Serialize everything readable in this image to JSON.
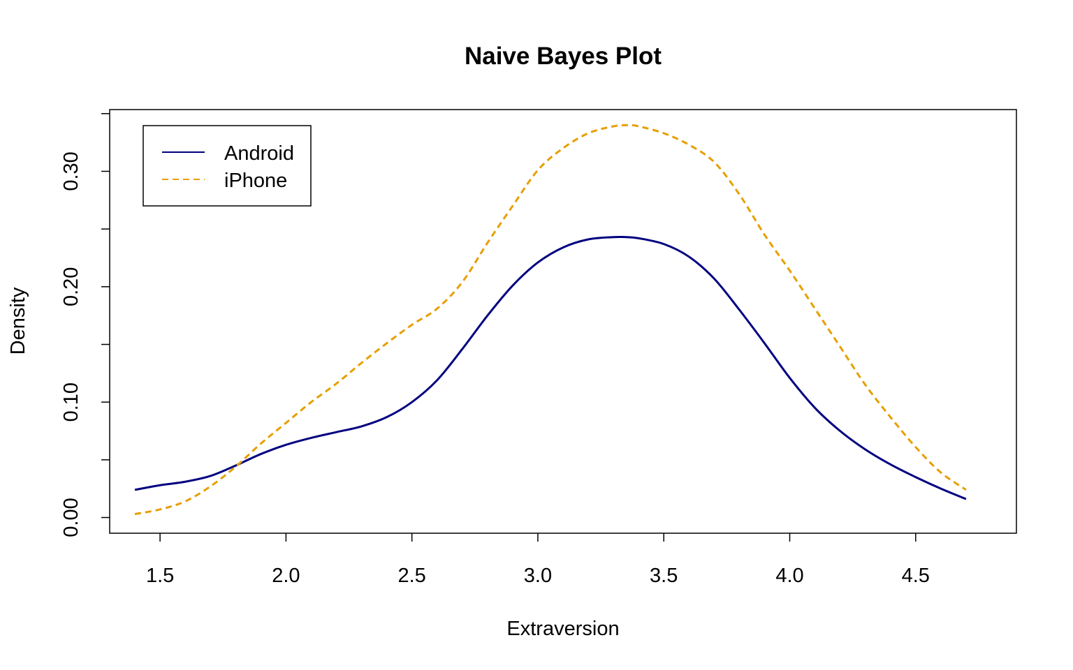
{
  "chart_data": {
    "type": "line",
    "title": "Naive Bayes Plot",
    "xlabel": "Extraversion",
    "ylabel": "Density",
    "xlim": [
      1.3,
      4.9
    ],
    "ylim": [
      -0.0136,
      0.3535
    ],
    "x_ticks": [
      1.5,
      2.0,
      2.5,
      3.0,
      3.5,
      4.0,
      4.5
    ],
    "x_tick_labels": [
      "1.5",
      "2.0",
      "2.5",
      "3.0",
      "3.5",
      "4.0",
      "4.5"
    ],
    "y_ticks": [
      0.0,
      0.05,
      0.1,
      0.15,
      0.2,
      0.25,
      0.3,
      0.35
    ],
    "y_tick_labels": [
      "0.00",
      "",
      "0.10",
      "",
      "0.20",
      "",
      "0.30",
      ""
    ],
    "grid": false,
    "legend_position": "top-left",
    "series": [
      {
        "name": "Android",
        "color": "#000080",
        "line_style": "solid",
        "x": [
          1.4,
          1.5,
          1.6,
          1.7,
          1.8,
          1.9,
          2.0,
          2.1,
          2.2,
          2.3,
          2.4,
          2.5,
          2.6,
          2.7,
          2.8,
          2.9,
          3.0,
          3.1,
          3.2,
          3.3,
          3.35,
          3.4,
          3.5,
          3.6,
          3.7,
          3.8,
          3.9,
          4.0,
          4.1,
          4.2,
          4.3,
          4.4,
          4.5,
          4.6,
          4.7
        ],
        "y": [
          0.024,
          0.028,
          0.031,
          0.036,
          0.045,
          0.055,
          0.063,
          0.069,
          0.074,
          0.079,
          0.087,
          0.1,
          0.119,
          0.146,
          0.175,
          0.201,
          0.221,
          0.234,
          0.241,
          0.243,
          0.243,
          0.242,
          0.237,
          0.226,
          0.207,
          0.18,
          0.151,
          0.121,
          0.095,
          0.075,
          0.059,
          0.046,
          0.035,
          0.025,
          0.016
        ]
      },
      {
        "name": "iPhone",
        "color": "#E69F00",
        "line_style": "dashed",
        "x": [
          1.4,
          1.5,
          1.6,
          1.7,
          1.8,
          1.9,
          2.0,
          2.1,
          2.2,
          2.3,
          2.4,
          2.5,
          2.6,
          2.7,
          2.8,
          2.9,
          3.0,
          3.1,
          3.2,
          3.3,
          3.36,
          3.4,
          3.5,
          3.6,
          3.7,
          3.8,
          3.9,
          4.0,
          4.1,
          4.2,
          4.3,
          4.4,
          4.5,
          4.6,
          4.7
        ],
        "y": [
          0.003,
          0.007,
          0.014,
          0.027,
          0.044,
          0.064,
          0.082,
          0.1,
          0.116,
          0.134,
          0.151,
          0.167,
          0.181,
          0.204,
          0.238,
          0.27,
          0.301,
          0.32,
          0.333,
          0.339,
          0.34,
          0.339,
          0.333,
          0.323,
          0.308,
          0.28,
          0.245,
          0.214,
          0.181,
          0.148,
          0.115,
          0.087,
          0.061,
          0.039,
          0.024
        ]
      }
    ]
  }
}
